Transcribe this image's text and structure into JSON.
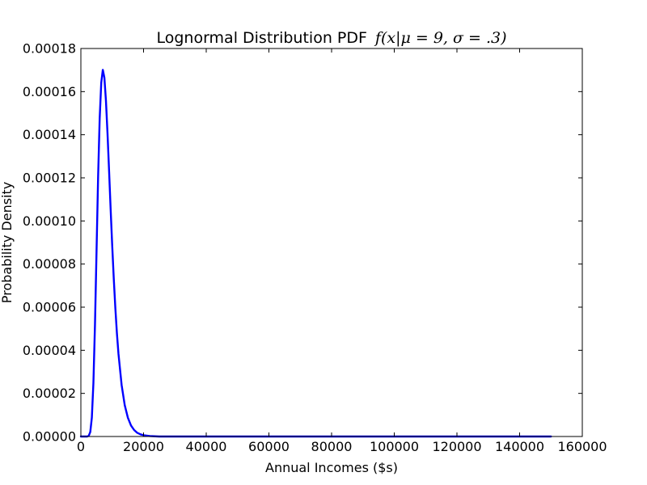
{
  "chart_data": {
    "type": "line",
    "title": "Lognormal Distribution PDF",
    "title_formula": "f(x|μ = 9, σ = .3)",
    "xlabel": "Annual Incomes  ($s)",
    "ylabel": "Probability Density",
    "xlim": [
      0,
      160000
    ],
    "ylim": [
      0,
      0.00018
    ],
    "x_ticks": [
      0,
      20000,
      40000,
      60000,
      80000,
      100000,
      120000,
      140000,
      160000
    ],
    "x_tick_labels": [
      "0",
      "20000",
      "40000",
      "60000",
      "80000",
      "100000",
      "120000",
      "140000",
      "160000"
    ],
    "y_ticks": [
      0,
      2e-05,
      4e-05,
      6e-05,
      8e-05,
      0.0001,
      0.00012,
      0.00014,
      0.00016,
      0.00018
    ],
    "y_tick_labels": [
      "0.00000",
      "0.00002",
      "0.00004",
      "0.00006",
      "0.00008",
      "0.00010",
      "0.00012",
      "0.00014",
      "0.00016",
      "0.00018"
    ],
    "grid": false,
    "legend": "none",
    "series": [
      {
        "color": "#0000ff",
        "x": [
          0,
          1000,
          2000,
          2500,
          3000,
          3500,
          4000,
          4500,
          5000,
          5500,
          6000,
          6500,
          7000,
          7500,
          8000,
          8500,
          9000,
          9500,
          10000,
          10500,
          11000,
          11500,
          12000,
          13000,
          14000,
          15000,
          16000,
          17000,
          18000,
          19000,
          20000,
          22000,
          25000,
          30000,
          40000,
          60000,
          80000,
          100000,
          120000,
          150000
        ],
        "y": [
          0,
          0,
          0,
          3e-07,
          2.1e-06,
          8.7e-06,
          2.48e-05,
          5.19e-05,
          8.62e-05,
          0.0001203,
          0.0001475,
          0.0001641,
          0.0001701,
          0.0001665,
          0.0001558,
          0.0001406,
          0.0001232,
          0.0001054,
          8.85e-05,
          7.31e-05,
          5.95e-05,
          4.79e-05,
          3.83e-05,
          2.39e-05,
          1.45e-05,
          8.7e-06,
          5.1e-06,
          3e-06,
          1.7e-06,
          1e-06,
          6e-07,
          2e-07,
          0,
          0,
          0,
          0,
          0,
          0,
          0,
          0
        ]
      }
    ]
  }
}
